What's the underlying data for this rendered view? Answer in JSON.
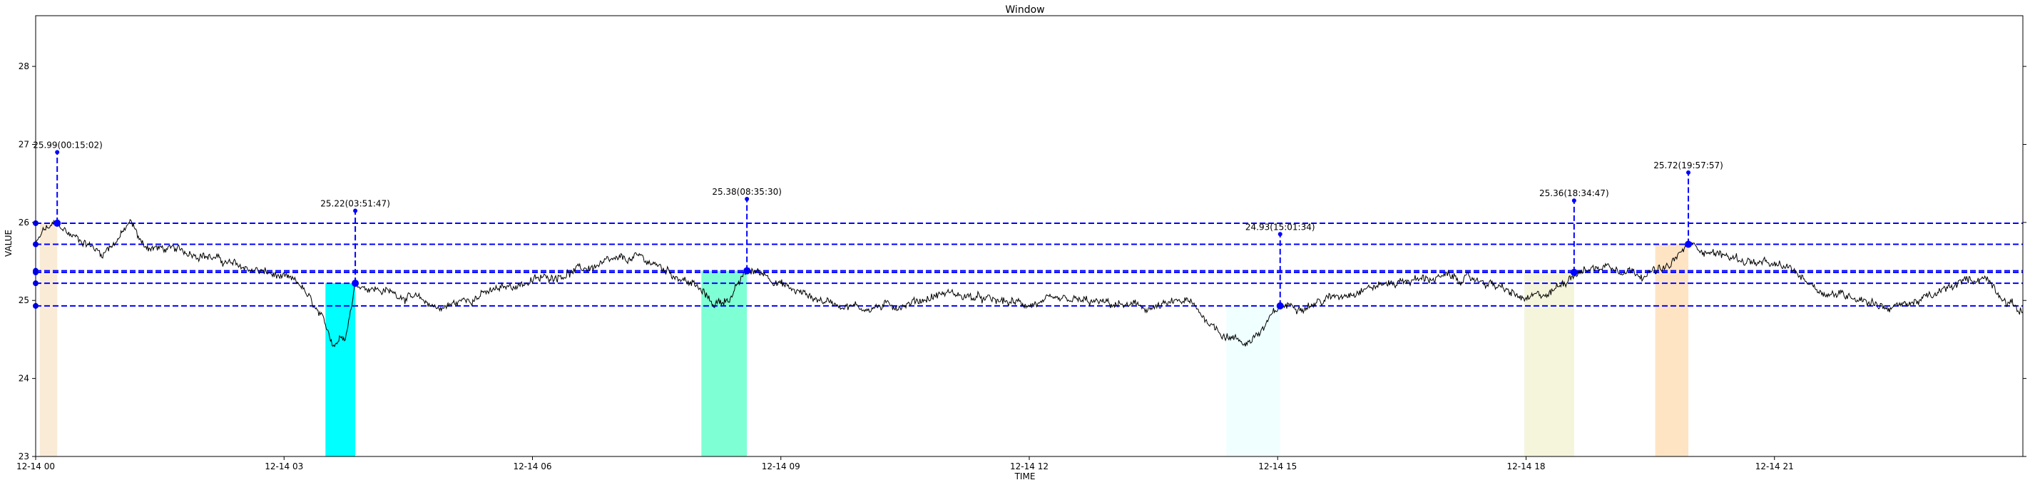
{
  "chart_data": {
    "type": "line",
    "title": "Window",
    "xlabel": "TIME",
    "ylabel": "VALUE",
    "x_range_hours": [
      0,
      24
    ],
    "ylim": [
      23,
      28.65
    ],
    "xticks": [
      {
        "h": 0,
        "label": "12-14 00"
      },
      {
        "h": 3,
        "label": "12-14 03"
      },
      {
        "h": 6,
        "label": "12-14 06"
      },
      {
        "h": 9,
        "label": "12-14 09"
      },
      {
        "h": 12,
        "label": "12-14 12"
      },
      {
        "h": 15,
        "label": "12-14 15"
      },
      {
        "h": 18,
        "label": "12-14 18"
      },
      {
        "h": 21,
        "label": "12-14 21"
      }
    ],
    "yticks": [
      {
        "v": 23,
        "label": "23"
      },
      {
        "v": 24,
        "label": "24"
      },
      {
        "v": 25,
        "label": "25"
      },
      {
        "v": 26,
        "label": "26"
      },
      {
        "v": 27,
        "label": "27"
      },
      {
        "v": 28,
        "label": "28"
      }
    ],
    "series_color": "#000000",
    "guide_color": "#0000ff",
    "series_anchors": [
      [
        0.0,
        25.7
      ],
      [
        0.1,
        25.9
      ],
      [
        0.2,
        25.95
      ],
      [
        0.26,
        25.99
      ],
      [
        0.4,
        25.85
      ],
      [
        0.6,
        25.75
      ],
      [
        0.8,
        25.6
      ],
      [
        1.0,
        25.8
      ],
      [
        1.15,
        26.0
      ],
      [
        1.3,
        25.7
      ],
      [
        1.6,
        25.65
      ],
      [
        2.0,
        25.6
      ],
      [
        2.4,
        25.45
      ],
      [
        2.8,
        25.35
      ],
      [
        3.2,
        25.2
      ],
      [
        3.45,
        24.75
      ],
      [
        3.6,
        24.45
      ],
      [
        3.75,
        24.6
      ],
      [
        3.86,
        25.22
      ],
      [
        4.1,
        25.15
      ],
      [
        4.5,
        25.05
      ],
      [
        4.9,
        24.9
      ],
      [
        5.3,
        25.05
      ],
      [
        5.8,
        25.2
      ],
      [
        6.2,
        25.3
      ],
      [
        6.6,
        25.4
      ],
      [
        7.0,
        25.5
      ],
      [
        7.3,
        25.55
      ],
      [
        7.6,
        25.4
      ],
      [
        7.95,
        25.2
      ],
      [
        8.2,
        24.95
      ],
      [
        8.4,
        25.05
      ],
      [
        8.59,
        25.38
      ],
      [
        8.8,
        25.35
      ],
      [
        9.1,
        25.15
      ],
      [
        9.5,
        25.0
      ],
      [
        10.0,
        24.9
      ],
      [
        10.5,
        24.95
      ],
      [
        11.0,
        25.1
      ],
      [
        11.5,
        25.0
      ],
      [
        12.0,
        24.95
      ],
      [
        12.5,
        25.0
      ],
      [
        13.0,
        24.95
      ],
      [
        13.5,
        24.9
      ],
      [
        13.9,
        25.0
      ],
      [
        14.3,
        24.6
      ],
      [
        14.6,
        24.45
      ],
      [
        14.8,
        24.6
      ],
      [
        15.03,
        24.93
      ],
      [
        15.4,
        24.95
      ],
      [
        16.0,
        25.15
      ],
      [
        16.5,
        25.25
      ],
      [
        17.0,
        25.3
      ],
      [
        17.5,
        25.25
      ],
      [
        18.0,
        25.0
      ],
      [
        18.3,
        25.1
      ],
      [
        18.58,
        25.36
      ],
      [
        19.0,
        25.45
      ],
      [
        19.4,
        25.35
      ],
      [
        19.7,
        25.4
      ],
      [
        19.96,
        25.72
      ],
      [
        20.3,
        25.6
      ],
      [
        20.7,
        25.5
      ],
      [
        21.2,
        25.4
      ],
      [
        21.6,
        25.1
      ],
      [
        22.0,
        25.05
      ],
      [
        22.4,
        24.9
      ],
      [
        22.9,
        25.05
      ],
      [
        23.3,
        25.25
      ],
      [
        23.55,
        25.3
      ],
      [
        23.8,
        25.0
      ],
      [
        24.0,
        24.85
      ]
    ],
    "shaded_regions": [
      {
        "x0": 0.05,
        "x1": 0.26,
        "color": "#faebd7"
      },
      {
        "x0": 3.5,
        "x1": 3.86,
        "color": "#00ffff"
      },
      {
        "x0": 8.04,
        "x1": 8.59,
        "color": "#7fffd4"
      },
      {
        "x0": 14.38,
        "x1": 15.03,
        "color": "#f0ffff"
      },
      {
        "x0": 17.98,
        "x1": 18.58,
        "color": "#f5f5dc"
      },
      {
        "x0": 19.56,
        "x1": 19.96,
        "color": "#ffe4c4"
      }
    ],
    "annotations": [
      {
        "x": 0.26,
        "y": 25.99,
        "text_y": 26.9,
        "label": "25.99(00:15:02)"
      },
      {
        "x": 3.86,
        "y": 25.22,
        "text_y": 26.15,
        "label": "25.22(03:51:47)"
      },
      {
        "x": 8.59,
        "y": 25.38,
        "text_y": 26.3,
        "label": "25.38(08:35:30)"
      },
      {
        "x": 15.03,
        "y": 24.93,
        "text_y": 25.85,
        "label": "24.93(15:01:34)"
      },
      {
        "x": 18.58,
        "y": 25.36,
        "text_y": 26.28,
        "label": "25.36(18:34:47)"
      },
      {
        "x": 19.96,
        "y": 25.72,
        "text_y": 26.64,
        "label": "25.72(19:57:57)"
      }
    ]
  }
}
